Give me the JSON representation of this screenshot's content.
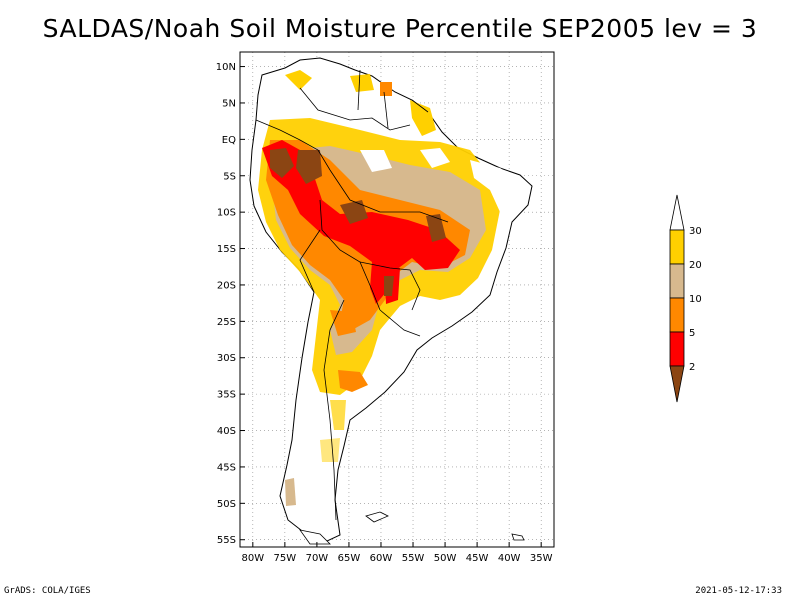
{
  "title": "SALDAS/Noah Soil Moisture Percentile SEP2005 lev = 3",
  "map": {
    "lat_ticks": [
      "10N",
      "5N",
      "EQ",
      "5S",
      "10S",
      "15S",
      "20S",
      "25S",
      "30S",
      "35S",
      "40S",
      "45S",
      "50S",
      "55S"
    ],
    "lon_ticks": [
      "80W",
      "75W",
      "70W",
      "65W",
      "60W",
      "55W",
      "50W",
      "45W",
      "40W",
      "35W"
    ],
    "extent": {
      "lon_min": -82,
      "lon_max": -33,
      "lat_min": -56,
      "lat_max": 12
    }
  },
  "legend": {
    "labels": [
      "30",
      "20",
      "10",
      "5",
      "2"
    ],
    "colors": [
      "#ffd000",
      "#d7b98e",
      "#ff8800",
      "#ff0000",
      "#8b4513"
    ],
    "top_color": "#ffffff"
  },
  "footer": {
    "left": "GrADS: COLA/IGES",
    "right": "2021-05-12-17:33"
  },
  "colors": {
    "dry_brown": "#8b4513",
    "red": "#ff0000",
    "orange": "#ff8800",
    "tan": "#d7b98e",
    "yellow": "#ffd000"
  }
}
